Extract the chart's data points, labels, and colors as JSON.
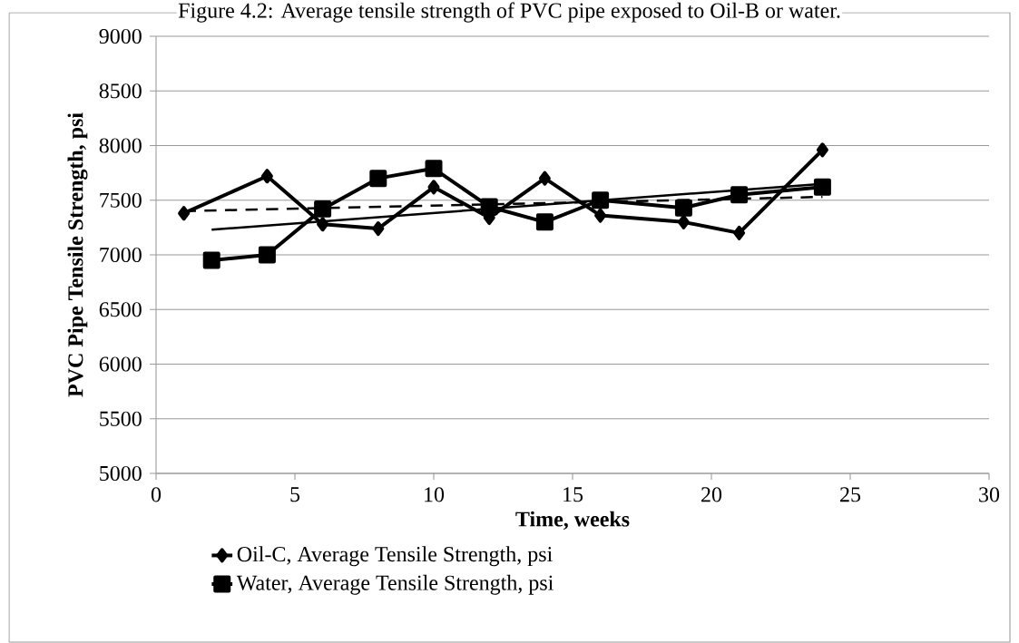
{
  "chart_data": {
    "type": "line",
    "title": "Figure 4.2: Average tensile strength of PVC pipe exposed to Oil-B or water.",
    "xlabel": "Time, weeks",
    "ylabel": "PVC Pipe Tensile Strength, psi",
    "xlim": [
      0,
      30
    ],
    "xticks": [
      0,
      5,
      10,
      15,
      20,
      25,
      30
    ],
    "ylim": [
      5000,
      9000
    ],
    "yticks": [
      5000,
      5500,
      6000,
      6500,
      7000,
      7500,
      8000,
      8500,
      9000
    ],
    "grid": "y",
    "legend": "bottom",
    "series": [
      {
        "name": "Oil-C, Average Tensile Strength, psi",
        "color": "#000000",
        "marker": "diamond",
        "line_style": "solid",
        "x": [
          1,
          4,
          6,
          8,
          10,
          12,
          14,
          16,
          19,
          21,
          24
        ],
        "values": [
          7380,
          7720,
          7280,
          7240,
          7620,
          7340,
          7700,
          7360,
          7300,
          7200,
          7960
        ]
      },
      {
        "name": "Water, Average Tensile Strength, psi",
        "color": "#000000",
        "marker": "square",
        "line_style": "solid",
        "x": [
          2,
          4,
          6,
          8,
          10,
          12,
          14,
          16,
          19,
          21,
          24
        ],
        "values": [
          6950,
          7000,
          7420,
          7700,
          7790,
          7440,
          7300,
          7500,
          7430,
          7550,
          7620
        ]
      },
      {
        "type": "line",
        "color": "#000000",
        "marker": "none",
        "line_style": "dashed",
        "x": [
          1,
          24
        ],
        "values": [
          7400,
          7530
        ]
      },
      {
        "type": "line",
        "color": "#000000",
        "marker": "none",
        "line_style": "solid",
        "x": [
          2,
          24
        ],
        "values": [
          7230,
          7650
        ]
      }
    ]
  }
}
